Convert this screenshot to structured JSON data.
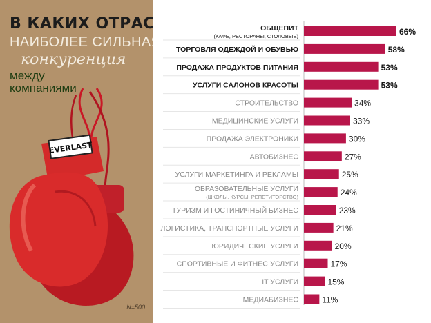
{
  "panel": {
    "title_line1": "В каких отраслях",
    "title_line2": "наиболее сильная",
    "title_line3": "конкуренция",
    "title_line4": "между",
    "title_line5": "компаниями",
    "sample_note": "N=500",
    "glove_brand": "EVERLAST"
  },
  "colors": {
    "bar": "#b8164a",
    "panel": "#b3926b",
    "label_strong": "#1a1a1a",
    "label_muted": "#8a8a8a"
  },
  "chart_data": {
    "type": "bar",
    "orientation": "horizontal",
    "title": "В каких отраслях наиболее сильная конкуренция между компаниями",
    "value_suffix": "%",
    "categories": [
      "ОБЩЕПИТ",
      "ТОРГОВЛЯ ОДЕЖДОЙ И ОБУВЬЮ",
      "ПРОДАЖА ПРОДУКТОВ ПИТАНИЯ",
      "УСЛУГИ САЛОНОВ КРАСОТЫ",
      "СТРОИТЕЛЬСТВО",
      "МЕДИЦИНСКИЕ УСЛУГИ",
      "ПРОДАЖА ЭЛЕКТРОНИКИ",
      "АВТОБИЗНЕС",
      "УСЛУГИ МАРКЕТИНГА И РЕКЛАМЫ",
      "ОБРАЗОВАТЕЛЬНЫЕ УСЛУГИ",
      "ТУРИЗМ И ГОСТИНИЧНЫЙ БИЗНЕС",
      "ЛОГИСТИКА, ТРАНСПОРТНЫЕ УСЛУГИ",
      "ЮРИДИЧЕСКИЕ УСЛУГИ",
      "СПОРТИВНЫЕ И ФИТНЕС-УСЛУГИ",
      "IT УСЛУГИ",
      "МЕДИАБИЗНЕС"
    ],
    "sublabels": [
      "(КАФЕ, РЕСТОРАНЫ, СТОЛОВЫЕ)",
      "",
      "",
      "",
      "",
      "",
      "",
      "",
      "",
      "(ШКОЛЫ, КУРСЫ, РЕПЕТИТОРСТВО)",
      "",
      "",
      "",
      "",
      "",
      ""
    ],
    "highlighted": [
      true,
      true,
      true,
      true,
      false,
      false,
      false,
      false,
      false,
      false,
      false,
      false,
      false,
      false,
      false,
      false
    ],
    "values": [
      66,
      58,
      53,
      53,
      34,
      33,
      30,
      27,
      25,
      24,
      23,
      21,
      20,
      17,
      15,
      11
    ],
    "xlim": [
      0,
      66
    ],
    "grid": false,
    "legend": "none"
  }
}
